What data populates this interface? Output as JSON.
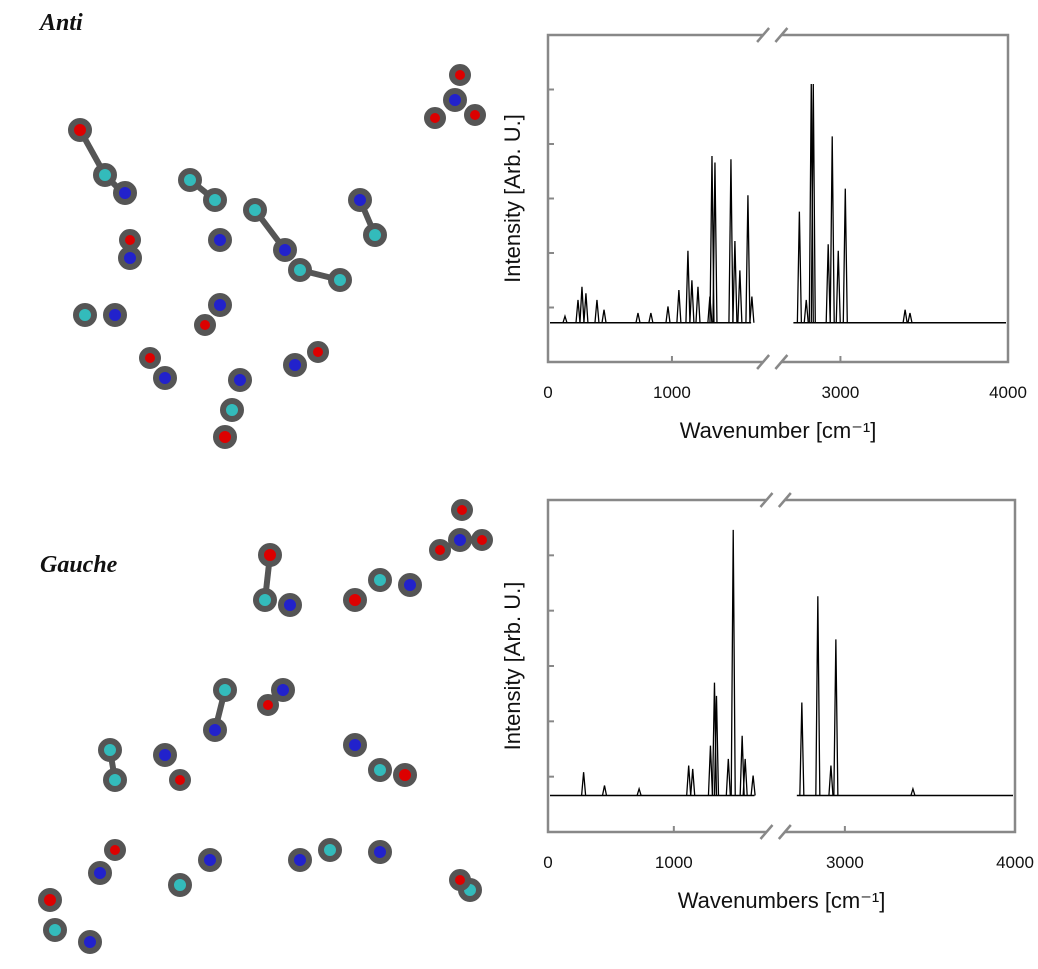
{
  "chart_data": [
    {
      "type": "stem",
      "title": "Anti",
      "x_label": "Wavenumber [cm⁻¹]",
      "y_label": "Intensity [Arb. U.]",
      "x": [
        137,
        242,
        274,
        306,
        395,
        452,
        726,
        830,
        968,
        1056,
        1129,
        1161,
        1210,
        1306,
        1323,
        1347,
        1476,
        1508,
        1548,
        1613,
        1645,
        2755,
        2796,
        2826,
        2838,
        2927,
        2951,
        2987,
        3029,
        3386,
        3415
      ],
      "values": [
        2,
        7,
        11,
        9,
        7,
        4,
        3,
        3,
        5,
        10,
        22,
        13,
        11,
        8,
        51,
        49,
        50,
        25,
        16,
        39,
        8,
        34,
        7,
        73,
        73,
        24,
        57,
        22,
        41,
        4,
        3
      ],
      "color": "#000000",
      "xlim": [
        0,
        4000
      ],
      "x_break": [
        1800,
        2600
      ],
      "ylim": [
        -12,
        88
      ],
      "xticks": [
        0,
        1000,
        3000,
        4000
      ]
    },
    {
      "type": "stem",
      "title": "Gauche",
      "x_label": "Wavenumbers [cm⁻¹]",
      "y_label": "Intensity [Arb. U.]",
      "x": [
        283,
        449,
        724,
        1118,
        1150,
        1291,
        1323,
        1339,
        1433,
        1472,
        1543,
        1567,
        1630,
        2747,
        2841,
        2918,
        2947,
        3400
      ],
      "values": [
        7,
        3,
        2,
        9,
        8,
        15,
        34,
        30,
        11,
        80,
        18,
        11,
        6,
        28,
        60,
        9,
        47,
        2
      ],
      "color": "#000000",
      "xlim": [
        0,
        4000
      ],
      "x_break": [
        1800,
        2600
      ],
      "ylim": [
        -11,
        89
      ],
      "xticks": [
        0,
        1000,
        3000,
        4000
      ]
    }
  ]
}
